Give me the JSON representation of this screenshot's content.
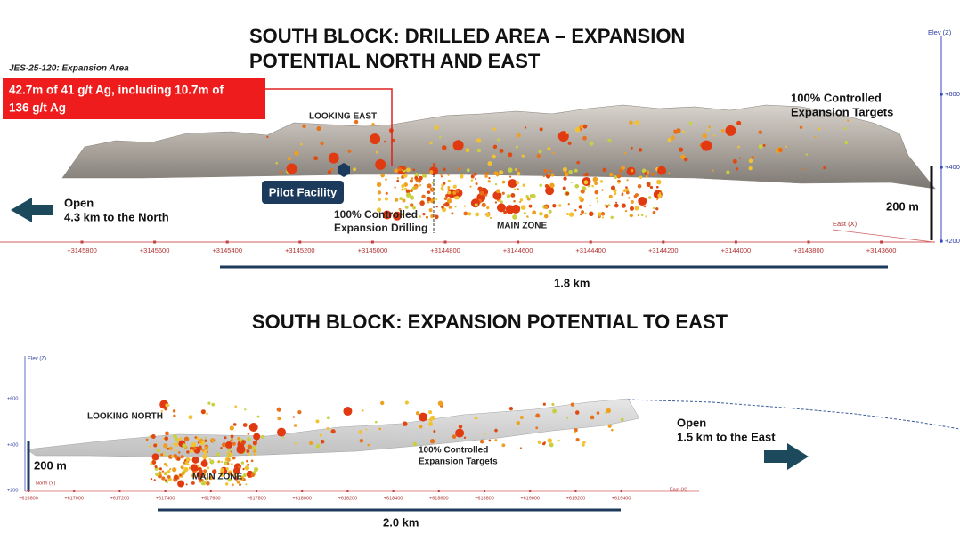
{
  "panel_1": {
    "title_lines": [
      "SOUTH BLOCK: DRILLED AREA – EXPANSION",
      "POTENTIAL NORTH AND EAST"
    ],
    "hole_label": "JES-25-120: Expansion Area",
    "callout_lines": [
      "42.7m of 41 g/t Ag, including 10.7m of",
      "136 g/t Ag"
    ],
    "view_label": "LOOKING EAST",
    "targets_lines": [
      "100% Controlled",
      "Expansion Targets"
    ],
    "facility_label": "Pilot Facility",
    "open_lines": [
      "Open",
      "4.3 km to the North"
    ],
    "drilling_lines": [
      "100% Controlled",
      "Expansion Drilling"
    ],
    "zone_label": "MAIN ZONE",
    "scale_label": "200 m",
    "x_axis_label": "East (X)",
    "z_axis_label": "Elev (Z)",
    "x_ticks": [
      "+3145800",
      "+3145600",
      "+3145400",
      "+3145200",
      "+3145000",
      "+3144800",
      "+3144600",
      "+3144400",
      "+3144200",
      "+3144000",
      "+3143800",
      "+3143600"
    ],
    "z_ticks": [
      "+600",
      "+400",
      "+200"
    ],
    "distance_label": "1.8 km"
  },
  "panel_2": {
    "title": "SOUTH BLOCK: EXPANSION POTENTIAL TO EAST",
    "z_axis_label": "Elev (Z)",
    "z_ticks": [
      "+600",
      "+400",
      "+200"
    ],
    "view_label": "LOOKING NORTH",
    "scale_label": "200 m",
    "zone_label": "MAIN ZONE",
    "targets_lines": [
      "100% Controlled",
      "Expansion Targets"
    ],
    "open_lines": [
      "Open",
      "1.5 km to the East"
    ],
    "y_axis_label": "North (Y)",
    "x_axis_label": "East (X)",
    "x_ticks": [
      "+616800",
      "+617000",
      "+617200",
      "+617400",
      "+617600",
      "+617800",
      "+618000",
      "+618200",
      "+618400",
      "+618600",
      "+618800",
      "+619000",
      "+619200",
      "+619400"
    ],
    "distance_label": "2.0 km"
  }
}
